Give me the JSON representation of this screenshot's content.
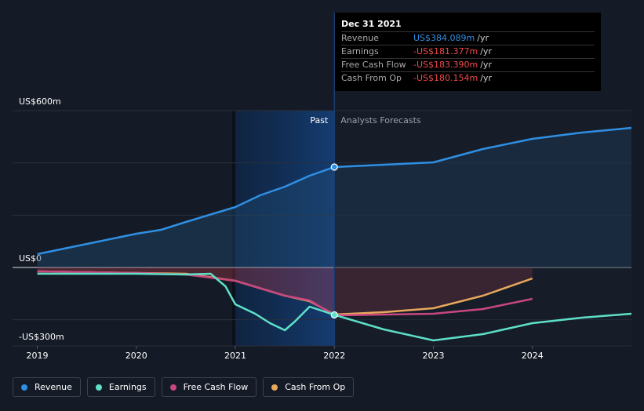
{
  "chart_data": {
    "type": "line",
    "xlim": [
      2018.75,
      2025
    ],
    "xticks": [
      2019,
      2020,
      2021,
      2022,
      2023,
      2024
    ],
    "ylim": [
      -300,
      600
    ],
    "yticks": [
      {
        "value": 600,
        "label": "US$600m"
      },
      {
        "value": 0,
        "label": "US$0"
      },
      {
        "value": -300,
        "label": "-US$300m"
      }
    ],
    "grid_lines": [
      400,
      200,
      -200
    ],
    "past_start": 2021,
    "forecast_start": 2022,
    "past_label": "Past",
    "forecast_label": "Analysts Forecasts",
    "series": [
      {
        "name": "Revenue",
        "color": "#2f8fe3",
        "x": [
          2019,
          2019.5,
          2020,
          2020.25,
          2020.5,
          2021,
          2021.25,
          2021.5,
          2021.75,
          2022,
          2022.5,
          2023,
          2023.5,
          2024,
          2024.5,
          2025
        ],
        "values": [
          51,
          90,
          129,
          144,
          174,
          231,
          276,
          309,
          351,
          384.089,
          393,
          402,
          453,
          492,
          516,
          534
        ]
      },
      {
        "name": "Earnings",
        "color": "#5ee0c8",
        "x": [
          2019,
          2020,
          2020.5,
          2020.75,
          2020.9,
          2021,
          2021.2,
          2021.35,
          2021.5,
          2021.6,
          2021.75,
          2022,
          2022.5,
          2023,
          2023.5,
          2024,
          2024.5,
          2025
        ],
        "values": [
          -24,
          -24,
          -27,
          -24,
          -72,
          -141,
          -177,
          -213,
          -240,
          -207,
          -150,
          -181.377,
          -237,
          -279,
          -255,
          -213,
          -192,
          -177
        ]
      },
      {
        "name": "Free Cash Flow",
        "color": "#c8477f",
        "x": [
          2019,
          2020,
          2020.5,
          2021,
          2021.5,
          2021.75,
          2022,
          2022.5,
          2023,
          2023.5,
          2024
        ],
        "values": [
          -15,
          -21,
          -27,
          -51,
          -108,
          -126,
          -183.39,
          -180,
          -177,
          -159,
          -120
        ]
      },
      {
        "name": "Cash From Op",
        "color": "#e8a85c",
        "x": [
          2019,
          2020,
          2020.5,
          2021,
          2021.5,
          2021.75,
          2022,
          2022.5,
          2023,
          2023.5,
          2024
        ],
        "values": [
          -15,
          -21,
          -24,
          -51,
          -108,
          -129,
          -180.154,
          -171,
          -156,
          -108,
          -42
        ]
      }
    ]
  },
  "tooltip": {
    "date": "Dec 31 2021",
    "rows": [
      {
        "label": "Revenue",
        "value": "US$384.089m",
        "unit": "/yr",
        "color": "#2f8fe3"
      },
      {
        "label": "Earnings",
        "value": "-US$181.377m",
        "unit": "/yr",
        "color": "#f04a4a"
      },
      {
        "label": "Free Cash Flow",
        "value": "-US$183.390m",
        "unit": "/yr",
        "color": "#f04a4a"
      },
      {
        "label": "Cash From Op",
        "value": "-US$180.154m",
        "unit": "/yr",
        "color": "#f04a4a"
      }
    ]
  }
}
